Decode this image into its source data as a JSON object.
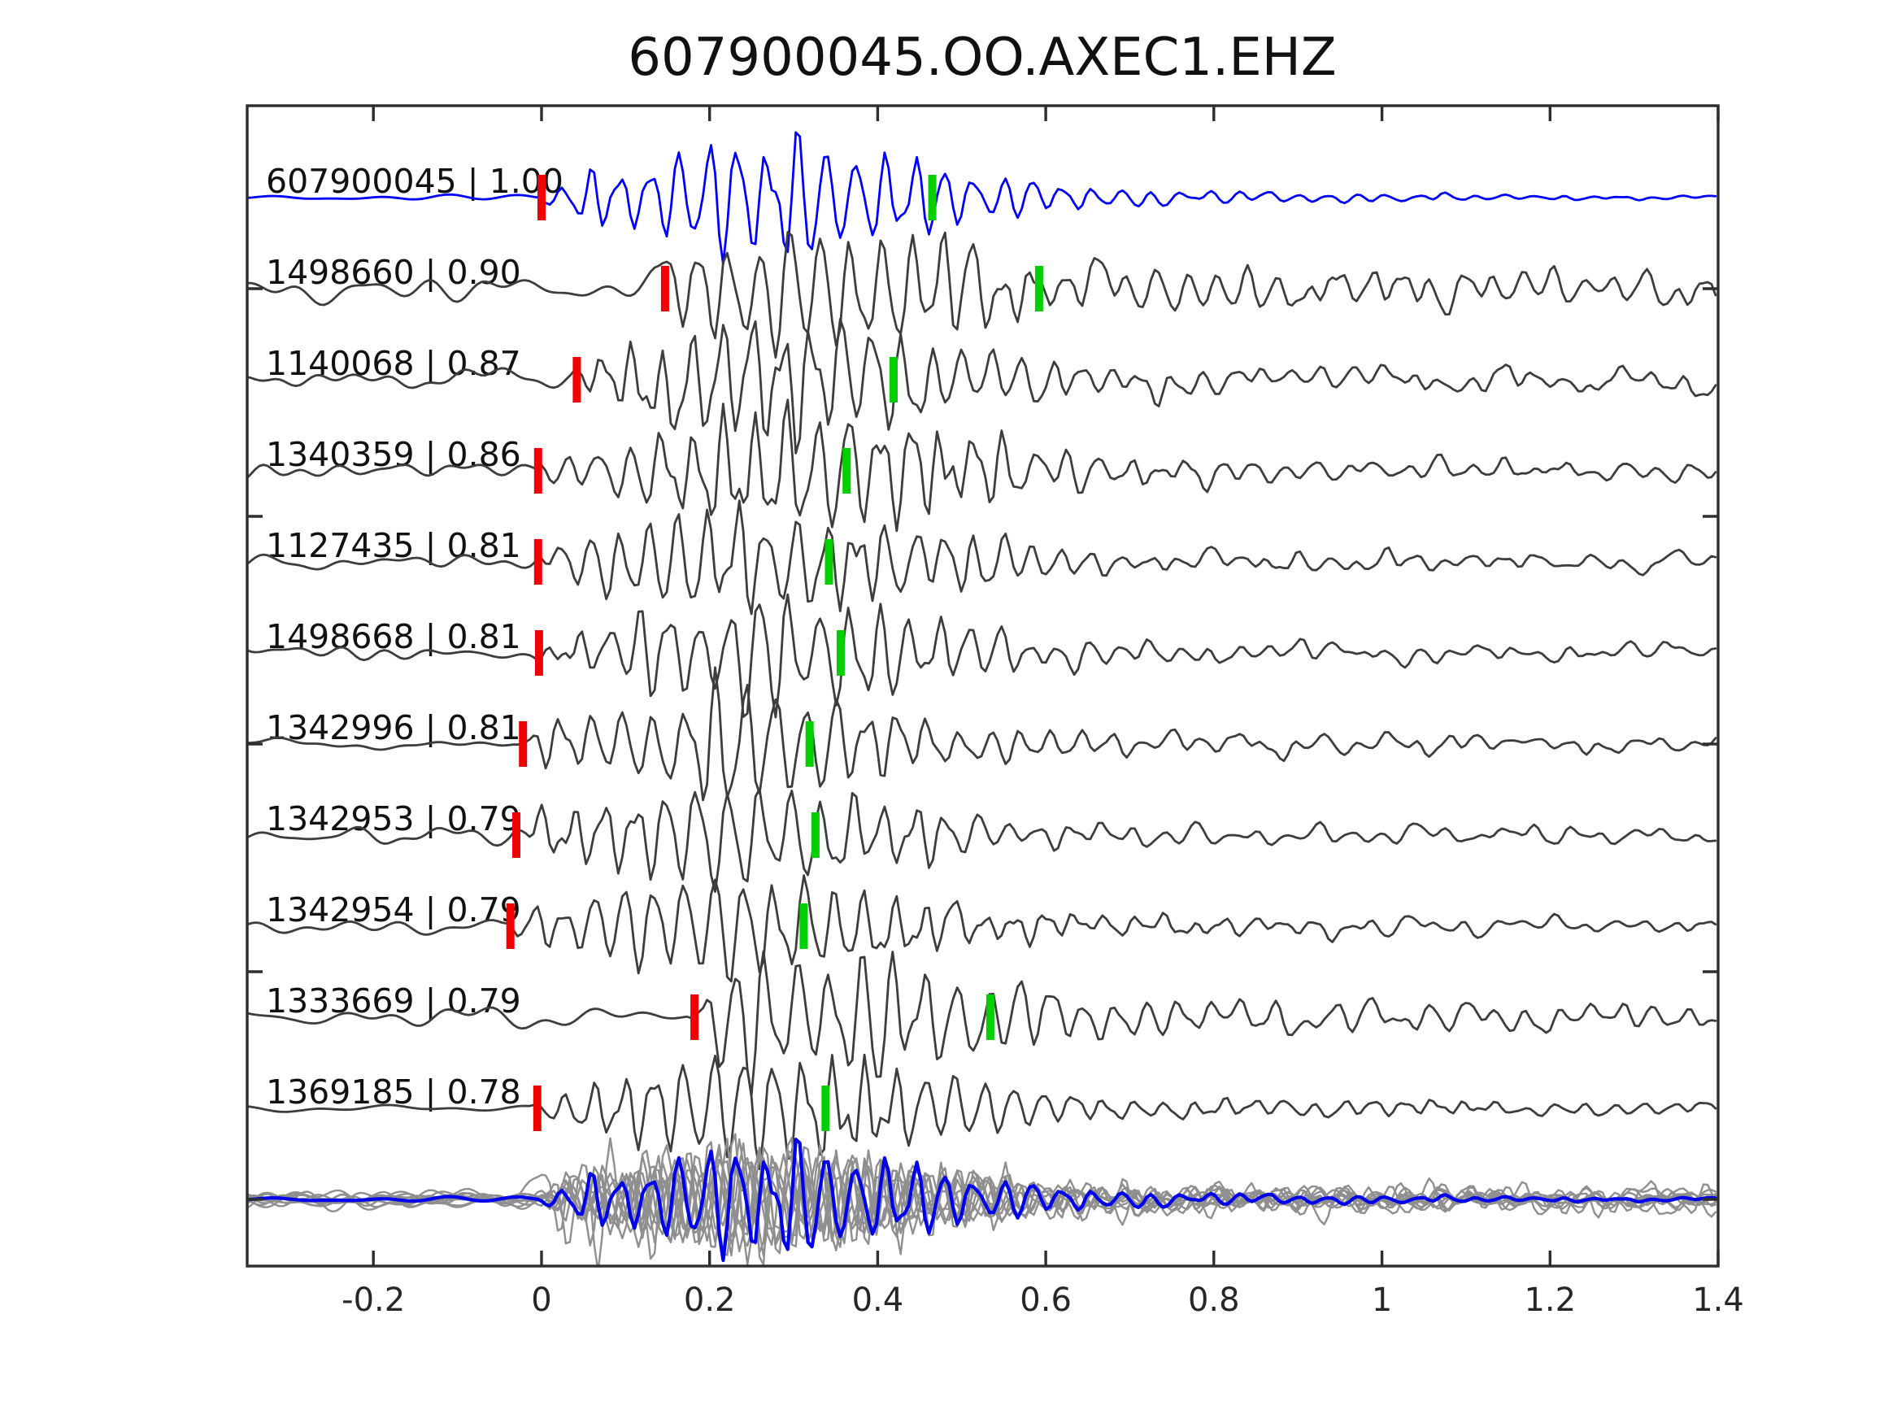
{
  "chart_data": {
    "type": "line",
    "title": "607900045.OO.AXEC1.EHZ",
    "xlabel": "",
    "ylabel": "",
    "xlim": [
      -0.3502,
      1.4
    ],
    "x_ticks": [
      -0.2,
      0,
      0.2,
      0.4,
      0.6,
      0.8,
      1,
      1.2,
      1.4
    ],
    "x_tick_labels": [
      "-0.2",
      "0",
      "0.2",
      "0.4",
      "0.6",
      "0.8",
      "1",
      "1.2",
      "1.4"
    ],
    "y_tick_labels": [],
    "grid": false,
    "legend": null,
    "colors": {
      "template_trace": "#0000ff",
      "member_trace": "#3d3d3d",
      "stack_member": "#8f8f8f",
      "stack_template": "#0000ee",
      "red_pick": "#f20000",
      "green_pick": "#00cf00",
      "axis": "#2e2e2e",
      "text": "#111111"
    },
    "traces": [
      {
        "label": "607900045 | 1.00",
        "id": "607900045",
        "correlation": 1.0,
        "red_pick_s": 0.0,
        "green_pick_s": 0.465,
        "color": "#0000ff",
        "synth": {
          "seed": 11,
          "noise": 2.5,
          "peak": 62,
          "tpk": 0.26,
          "mid": 15,
          "fade": 0.7,
          "freq": 28.5
        }
      },
      {
        "label": "1498660 | 0.90",
        "id": "1498660",
        "correlation": 0.9,
        "red_pick_s": 0.147,
        "green_pick_s": 0.592,
        "color": "#3d3d3d",
        "synth": {
          "seed": 22,
          "noise": 13,
          "peak": 55,
          "tpk": 0.28,
          "mid": 24,
          "fade": 0.28,
          "freq": 27.5
        }
      },
      {
        "label": "1140068 | 0.87",
        "id": "1140068",
        "correlation": 0.87,
        "red_pick_s": 0.042,
        "green_pick_s": 0.419,
        "color": "#3d3d3d",
        "synth": {
          "seed": 33,
          "noise": 11,
          "peak": 58,
          "tpk": 0.27,
          "mid": 19,
          "fade": 0.5,
          "freq": 28
        }
      },
      {
        "label": "1340359 | 0.86",
        "id": "1340359",
        "correlation": 0.86,
        "red_pick_s": -0.004,
        "green_pick_s": 0.363,
        "color": "#3d3d3d",
        "synth": {
          "seed": 44,
          "noise": 7,
          "peak": 60,
          "tpk": 0.29,
          "mid": 17,
          "fade": 0.45,
          "freq": 27
        }
      },
      {
        "label": "1127435 | 0.81",
        "id": "1127435",
        "correlation": 0.81,
        "red_pick_s": -0.004,
        "green_pick_s": 0.342,
        "color": "#3d3d3d",
        "synth": {
          "seed": 55,
          "noise": 8,
          "peak": 54,
          "tpk": 0.25,
          "mid": 15,
          "fade": 0.5,
          "freq": 28.5
        }
      },
      {
        "label": "1498668 | 0.81",
        "id": "1498668",
        "correlation": 0.81,
        "red_pick_s": -0.003,
        "green_pick_s": 0.356,
        "color": "#3d3d3d",
        "synth": {
          "seed": 66,
          "noise": 7,
          "peak": 58,
          "tpk": 0.26,
          "mid": 15,
          "fade": 0.5,
          "freq": 28
        }
      },
      {
        "label": "1342996 | 0.81",
        "id": "1342996",
        "correlation": 0.81,
        "red_pick_s": -0.022,
        "green_pick_s": 0.319,
        "color": "#3d3d3d",
        "synth": {
          "seed": 77,
          "noise": 8,
          "peak": 54,
          "tpk": 0.21,
          "mid": 15,
          "fade": 0.45,
          "freq": 27.5
        }
      },
      {
        "label": "1342953 | 0.79",
        "id": "1342953",
        "correlation": 0.79,
        "red_pick_s": -0.03,
        "green_pick_s": 0.326,
        "color": "#3d3d3d",
        "synth": {
          "seed": 88,
          "noise": 8,
          "peak": 52,
          "tpk": 0.21,
          "mid": 14,
          "fade": 0.45,
          "freq": 27
        }
      },
      {
        "label": "1342954 | 0.79",
        "id": "1342954",
        "correlation": 0.79,
        "red_pick_s": -0.037,
        "green_pick_s": 0.312,
        "color": "#3d3d3d",
        "synth": {
          "seed": 99,
          "noise": 7,
          "peak": 54,
          "tpk": 0.2,
          "mid": 14,
          "fade": 0.45,
          "freq": 28
        }
      },
      {
        "label": "1333669 | 0.79",
        "id": "1333669",
        "correlation": 0.79,
        "red_pick_s": 0.182,
        "green_pick_s": 0.534,
        "color": "#3d3d3d",
        "synth": {
          "seed": 110,
          "noise": 12,
          "peak": 58,
          "tpk": 0.32,
          "mid": 20,
          "fade": 0.35,
          "freq": 26.5
        }
      },
      {
        "label": "1369185 | 0.78",
        "id": "1369185",
        "correlation": 0.78,
        "red_pick_s": -0.005,
        "green_pick_s": 0.338,
        "color": "#3d3d3d",
        "synth": {
          "seed": 121,
          "noise": 4,
          "peak": 58,
          "tpk": 0.26,
          "mid": 15,
          "fade": 0.45,
          "freq": 28
        }
      }
    ],
    "stack_row": {
      "description": "All member waveforms time-shifted to align red picks at 0, overlaid in gray with the blue template stack on top",
      "member_color": "#8f8f8f",
      "template_color": "#0000ee"
    }
  }
}
